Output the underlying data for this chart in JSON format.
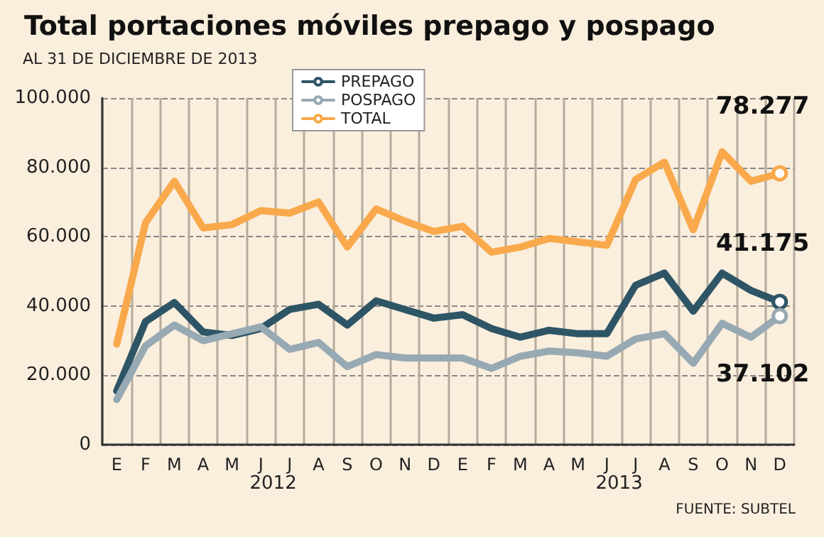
{
  "chart_data": {
    "type": "line",
    "title": "Total portaciones móviles prepago y pospago",
    "subtitle": "AL 31 DE DICIEMBRE DE 2013",
    "categories": [
      "E",
      "F",
      "M",
      "A",
      "M",
      "J",
      "J",
      "A",
      "S",
      "O",
      "N",
      "D",
      "E",
      "F",
      "M",
      "A",
      "M",
      "J",
      "J",
      "A",
      "S",
      "O",
      "N",
      "D"
    ],
    "series": [
      {
        "name": "PREPAGO",
        "color": "#2e5566",
        "values": [
          15500,
          35500,
          41000,
          32500,
          31500,
          33500,
          39000,
          40500,
          34500,
          41500,
          39000,
          36500,
          37500,
          33500,
          31000,
          33000,
          32000,
          32000,
          46000,
          49500,
          38500,
          49500,
          44500,
          41175
        ],
        "value_labels": [
          null,
          null,
          null,
          null,
          null,
          null,
          null,
          null,
          null,
          null,
          null,
          null,
          null,
          null,
          null,
          null,
          null,
          null,
          null,
          null,
          null,
          null,
          null,
          "41.175"
        ]
      },
      {
        "name": "POSPAGO",
        "color": "#97a9b3",
        "values": [
          13000,
          28500,
          34500,
          30000,
          32000,
          34000,
          27500,
          29500,
          22500,
          26000,
          25000,
          25000,
          25000,
          22000,
          25500,
          27000,
          26500,
          25500,
          30500,
          32000,
          23500,
          35000,
          31000,
          37102
        ],
        "value_labels": [
          null,
          null,
          null,
          null,
          null,
          null,
          null,
          null,
          null,
          null,
          null,
          null,
          null,
          null,
          null,
          null,
          null,
          null,
          null,
          null,
          null,
          null,
          null,
          "37.102"
        ]
      },
      {
        "name": "TOTAL",
        "color": "#f9a94b",
        "values": [
          29000,
          64000,
          76000,
          62500,
          63500,
          67500,
          66800,
          70000,
          57000,
          68000,
          64500,
          61500,
          63000,
          55500,
          57000,
          59500,
          58500,
          57500,
          76500,
          81500,
          62000,
          84500,
          76000,
          78277
        ],
        "value_labels": [
          null,
          null,
          null,
          null,
          null,
          null,
          null,
          null,
          null,
          null,
          null,
          null,
          null,
          null,
          null,
          null,
          null,
          null,
          null,
          null,
          null,
          null,
          null,
          "78.277"
        ]
      }
    ],
    "ylim": [
      0,
      100000
    ],
    "yticks": [
      {
        "value": 0,
        "label": "0"
      },
      {
        "value": 20000,
        "label": "20.000"
      },
      {
        "value": 40000,
        "label": "40.000"
      },
      {
        "value": 60000,
        "label": "60.000"
      },
      {
        "value": 80000,
        "label": "80.000"
      },
      {
        "value": 100000,
        "label": "100.000"
      }
    ],
    "grid": true,
    "legend": "top left",
    "marker": "none",
    "line_style": "solid",
    "annotations": [
      "2012",
      "2013",
      "FUENTE: SUBTEL"
    ]
  }
}
